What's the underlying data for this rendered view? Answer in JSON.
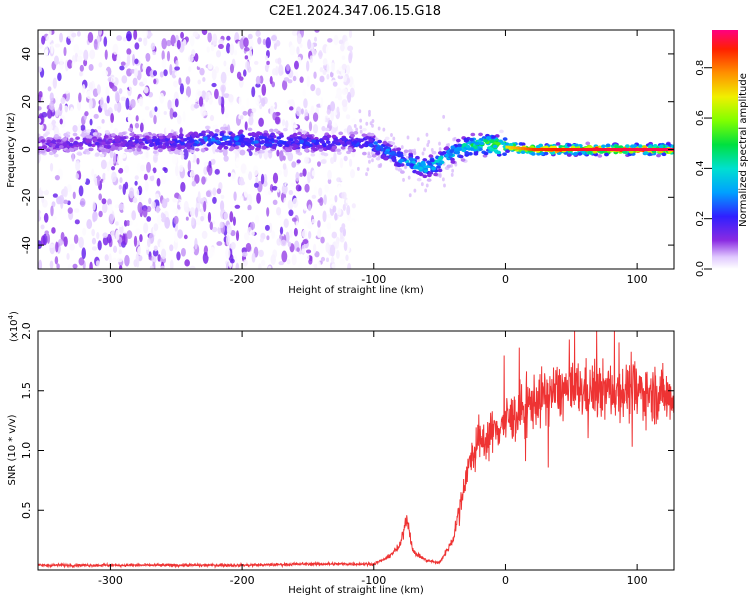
{
  "title": "C2E1.2024.347.06.15.G18",
  "chart_data": [
    {
      "type": "heatmap",
      "xlabel": "Height of straight line (km)",
      "ylabel": "Frequency (Hz)",
      "xlim": [
        -355,
        128
      ],
      "ylim": [
        -50,
        50
      ],
      "xticks": [
        -300,
        -200,
        -100,
        0,
        100
      ],
      "yticks": [
        -40,
        -20,
        0,
        20,
        40
      ],
      "colorbar": {
        "label": "Normalized spectral amplitude",
        "range": [
          0.0,
          0.95
        ],
        "ticks": [
          0.0,
          0.2,
          0.4,
          0.6,
          0.8
        ]
      },
      "ridge": {
        "x": [
          -355,
          -300,
          -250,
          -230,
          -200,
          -150,
          -120,
          -100,
          -80,
          -60,
          -50,
          -40,
          -30,
          -20,
          -10,
          0,
          20,
          60,
          100,
          128
        ],
        "y": [
          2,
          3,
          3,
          4,
          4,
          3,
          3,
          2,
          -4,
          -8,
          -5,
          -1,
          1,
          2,
          2,
          1,
          0,
          0,
          0,
          0
        ],
        "peak_amplitude": [
          0.15,
          0.18,
          0.22,
          0.3,
          0.3,
          0.25,
          0.22,
          0.3,
          0.35,
          0.42,
          0.45,
          0.45,
          0.5,
          0.55,
          0.6,
          0.7,
          0.85,
          0.9,
          0.92,
          0.92
        ]
      },
      "scatter_noise_extent": {
        "x_from": -355,
        "x_to": -115,
        "y_from": -50,
        "y_to": 50
      }
    },
    {
      "type": "line",
      "xlabel": "Height of straight line (km)",
      "ylabel": "SNR (10 * v/v)",
      "y_scale_note": "(x10",
      "y_scale_exp": "4",
      "xlim": [
        -355,
        128
      ],
      "ylim": [
        0,
        2.0
      ],
      "xticks": [
        -300,
        -200,
        -100,
        0,
        100
      ],
      "yticks": [
        0.5,
        1.0,
        1.5,
        2.0
      ],
      "color": "#ee3333",
      "series": [
        {
          "x": [
            -355,
            -300,
            -200,
            -150,
            -120,
            -100,
            -90,
            -80,
            -75,
            -70,
            -60,
            -50,
            -40,
            -35,
            -30,
            -25,
            -20,
            -15,
            -10,
            -5,
            0,
            10,
            20,
            30,
            40,
            60,
            80,
            100,
            128
          ],
          "y": [
            0.04,
            0.04,
            0.04,
            0.05,
            0.05,
            0.05,
            0.1,
            0.2,
            0.45,
            0.15,
            0.08,
            0.06,
            0.25,
            0.5,
            0.8,
            0.95,
            1.05,
            1.1,
            1.15,
            1.2,
            1.25,
            1.3,
            1.4,
            1.45,
            1.5,
            1.5,
            1.5,
            1.5,
            1.45
          ]
        }
      ]
    }
  ]
}
